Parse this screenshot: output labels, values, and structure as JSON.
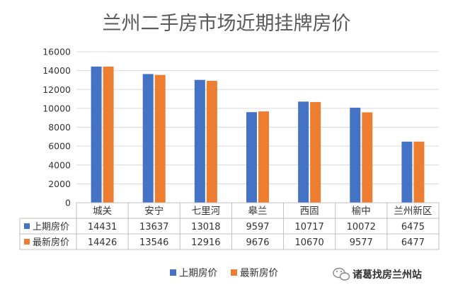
{
  "chart_data": {
    "type": "bar",
    "title": "兰州二手房市场近期挂牌房价",
    "categories": [
      "城关",
      "安宁",
      "七里河",
      "皋兰",
      "西固",
      "榆中",
      "兰州新区"
    ],
    "series": [
      {
        "name": "上期房价",
        "color": "#4472C4",
        "values": [
          14431,
          13637,
          13018,
          9597,
          10717,
          10072,
          6475
        ]
      },
      {
        "name": "最新房价",
        "color": "#ED7D31",
        "values": [
          14426,
          13546,
          12916,
          9676,
          10670,
          9577,
          6477
        ]
      }
    ],
    "ylim": [
      0,
      16000
    ],
    "yticks": [
      "0",
      "2000",
      "4000",
      "6000",
      "8000",
      "10000",
      "12000",
      "14000",
      "16000"
    ],
    "grid": true,
    "legend": "bottom",
    "data_table": true
  },
  "watermark": {
    "text": "诸葛找房兰州站",
    "icon": "wechat-icon"
  }
}
